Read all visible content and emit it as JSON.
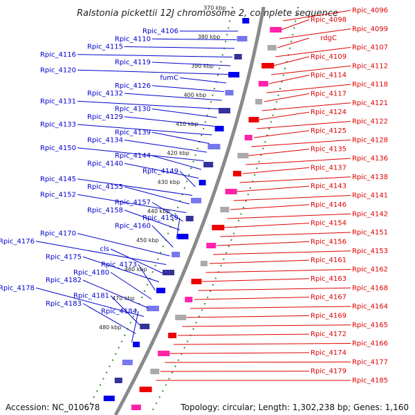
{
  "title": "Ralstonia pickettii 12J chromosome 2, complete sequence",
  "footer": {
    "accession": "Accession: NC_010678",
    "topology": "Topology: circular; Length: 1,302,238 bp; Genes: 1,160"
  },
  "ticks": [
    "370 kbp",
    "380 kbp",
    "390 kbp",
    "400 kbp",
    "410 kbp",
    "420 kbp",
    "430 kbp",
    "440 kbp",
    "450 kbp",
    "460 kbp",
    "470 kbp",
    "480 kbp"
  ],
  "left_labels": [
    "Rpic_4106",
    "Rpic_4110",
    "Rpic_4115",
    "Rpic_4116",
    "Rpic_4119",
    "Rpic_4120",
    "fumC",
    "Rpic_4126",
    "Rpic_4132",
    "Rpic_4131",
    "Rpic_4130",
    "Rpic_4129",
    "Rpic_4133",
    "Rpic_4139",
    "Rpic_4134",
    "Rpic_4150",
    "Rpic_4144",
    "Rpic_4140",
    "Rpic_4149",
    "Rpic_4145",
    "Rpic_4155",
    "Rpic_4152",
    "Rpic_4157",
    "Rpic_4158",
    "Rpic_4159",
    "Rpic_4160",
    "Rpic_4170",
    "Rpic_4176",
    "cls",
    "Rpic_4175",
    "Rpic_4173",
    "Rpic_4180",
    "Rpic_4182",
    "Rpic_4178",
    "Rpic_4181",
    "Rpic_4183",
    "Rpic_4184"
  ],
  "right_labels": [
    "Rpic_4096",
    "Rpic_4098",
    "Rpic_4099",
    "rdgC",
    "Rpic_4107",
    "Rpic_4109",
    "Rpic_4112",
    "Rpic_4114",
    "Rpic_4118",
    "Rpic_4117",
    "Rpic_4121",
    "Rpic_4124",
    "Rpic_4122",
    "Rpic_4125",
    "Rpic_4128",
    "Rpic_4135",
    "Rpic_4136",
    "Rpic_4137",
    "Rpic_4138",
    "Rpic_4143",
    "Rpic_4141",
    "Rpic_4146",
    "Rpic_4142",
    "Rpic_4154",
    "Rpic_4151",
    "Rpic_4156",
    "Rpic_4153",
    "Rpic_4161",
    "Rpic_4162",
    "Rpic_4163",
    "Rpic_4168",
    "Rpic_4167",
    "Rpic_4164",
    "Rpic_4169",
    "Rpic_4165",
    "Rpic_4172",
    "Rpic_4166",
    "Rpic_4174",
    "Rpic_4177",
    "Rpic_4179",
    "Rpic_4185"
  ],
  "colors": {
    "left": "#0000cc",
    "right": "#dd0000",
    "green": "#2a8a2a",
    "backbone": "#8a8a8a"
  }
}
